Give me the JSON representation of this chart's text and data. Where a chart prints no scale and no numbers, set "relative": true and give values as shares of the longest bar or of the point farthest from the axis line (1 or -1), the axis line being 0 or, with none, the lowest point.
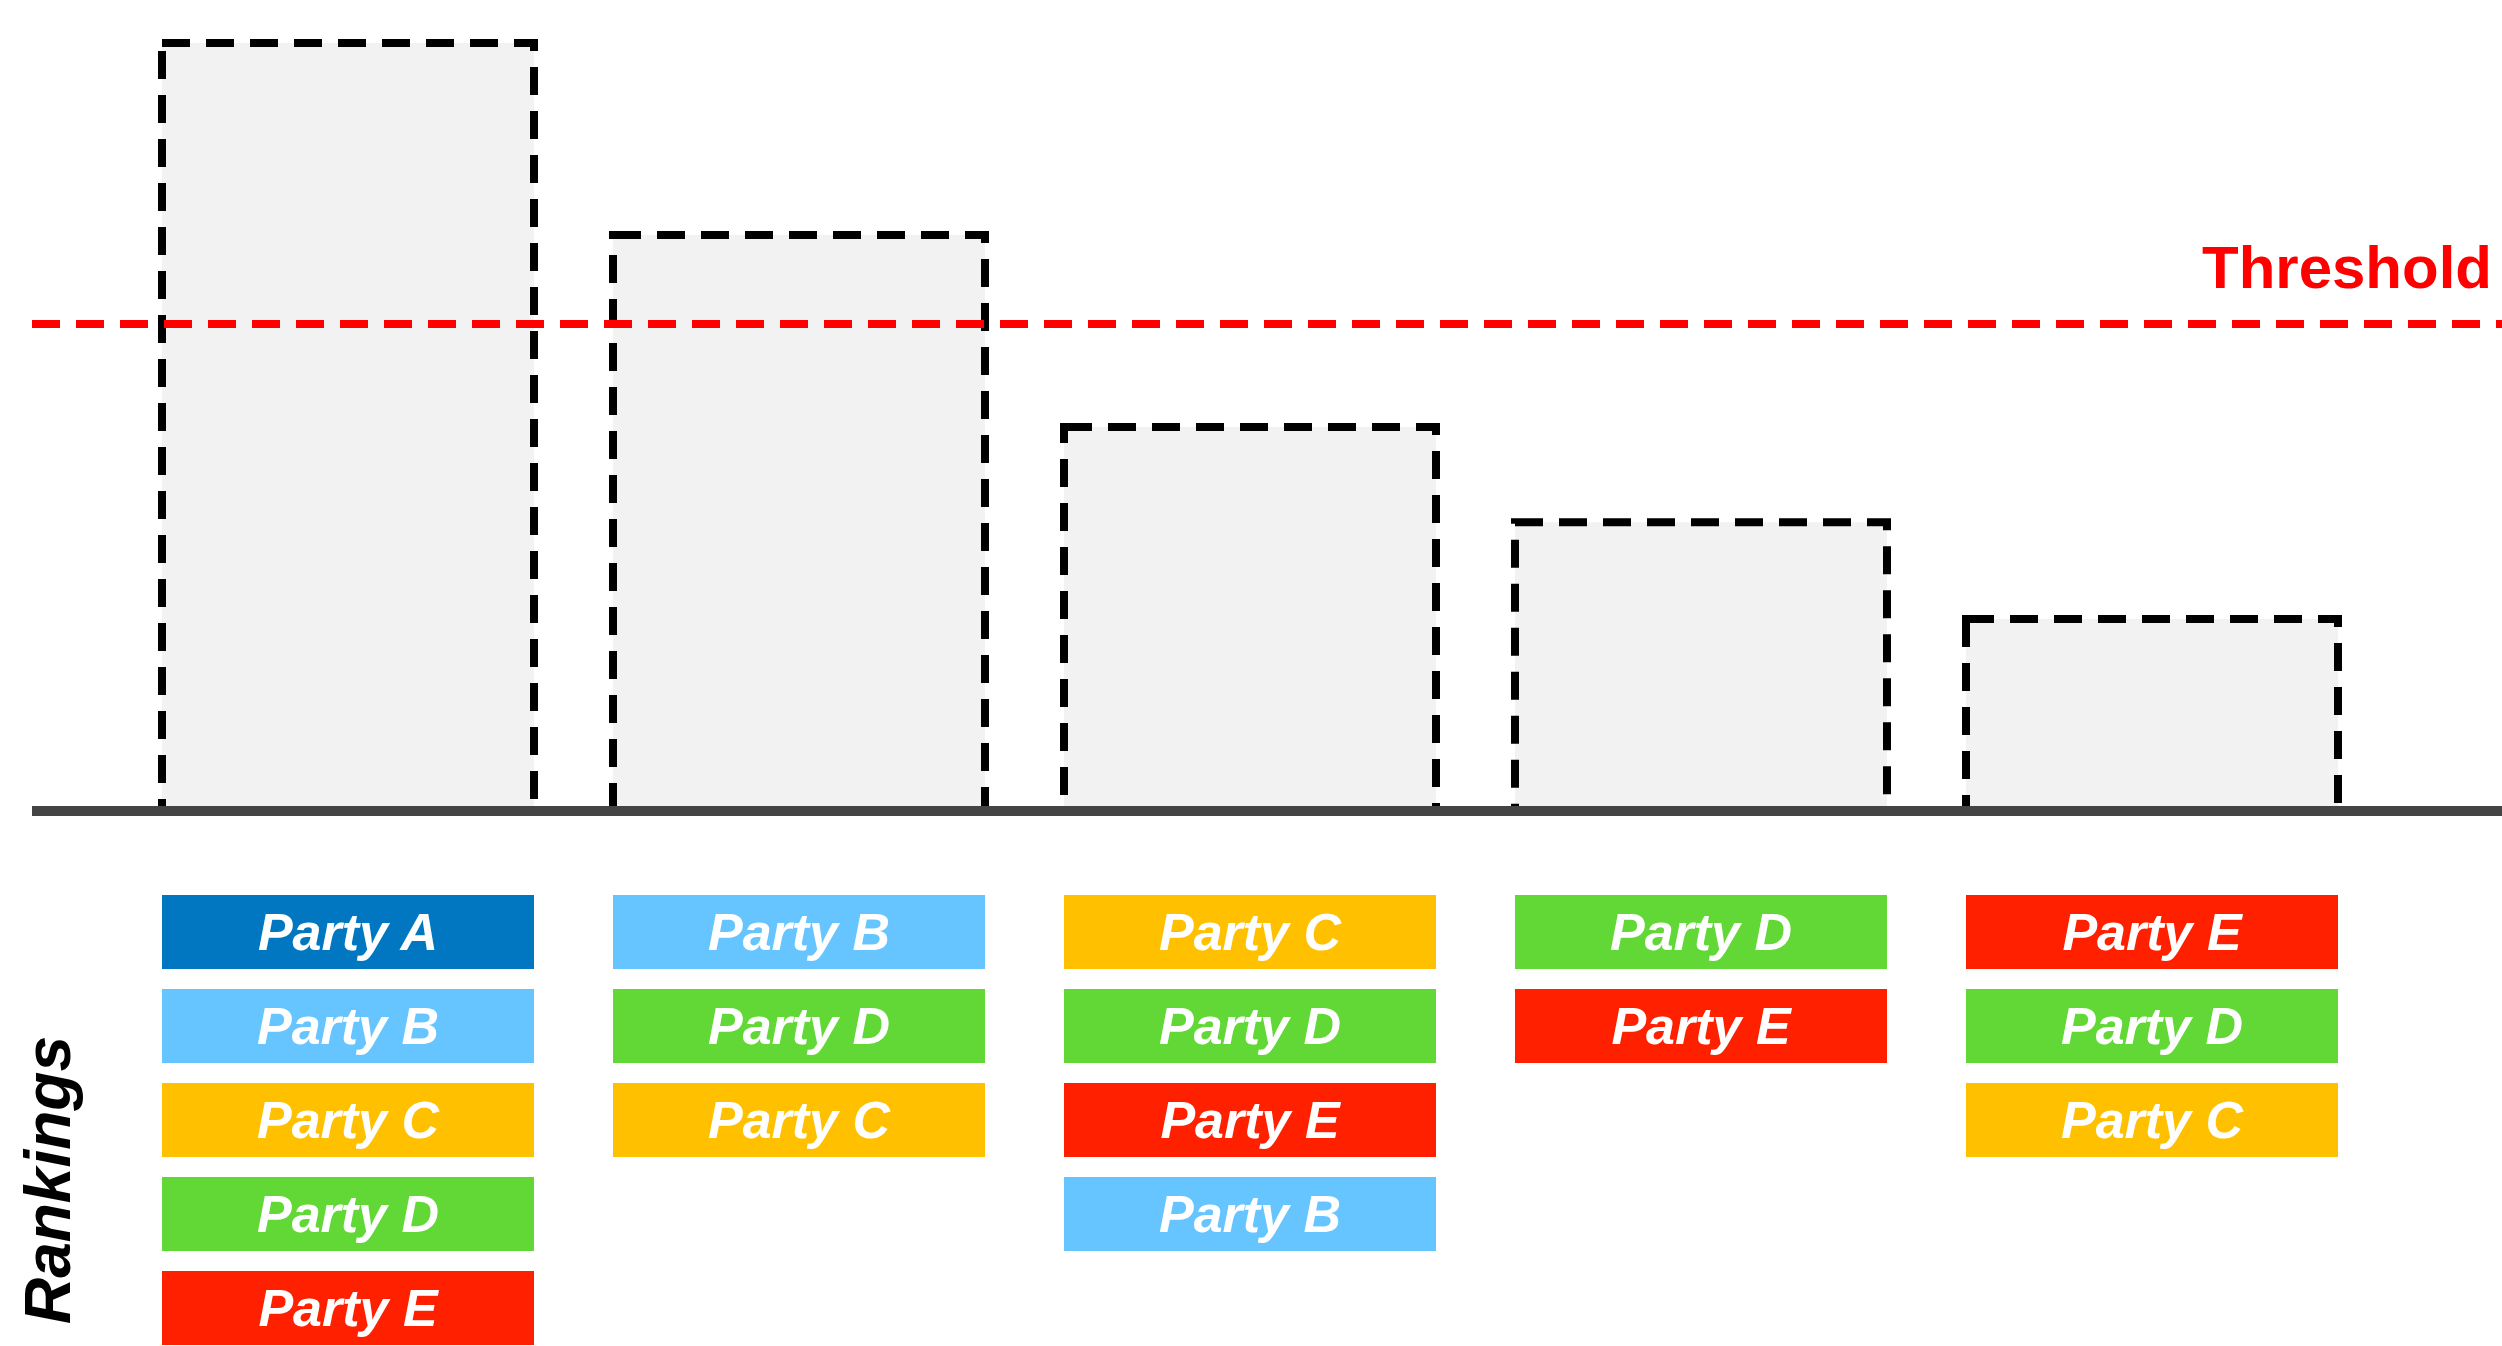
{
  "chart_data": [
    {
      "type": "bar",
      "relative": true,
      "categories": [
        null,
        null,
        null,
        null,
        null
      ],
      "values": [
        1,
        0.75,
        0.5,
        0.376,
        0.25
      ],
      "color": "#f2f2f2",
      "line_style": "dashed",
      "ref_lines": [
        {
          "axis": "y",
          "value": 0.634,
          "label": "Threshold",
          "color": "#ff0000",
          "line_style": "dashed"
        }
      ]
    },
    {
      "type": "other",
      "ylabel": "Rankings",
      "categories": [
        "Party A",
        "Party B",
        "Party C",
        "Party D",
        "Party E",
        "Party B",
        "Party D",
        "Party C",
        null,
        null,
        "Party C",
        "Party D",
        "Party E",
        "Party B",
        null,
        "Party D",
        "Party E",
        null,
        null,
        null,
        "Party E",
        "Party D",
        "Party C",
        null,
        null
      ],
      "colors": [
        "#0077c0",
        "#66c5ff",
        "#ffc000",
        "#61d836",
        "#ff2000",
        "#66c5ff",
        "#61d836",
        "#ffc000",
        null,
        null,
        "#ffc000",
        "#61d836",
        "#ff2000",
        "#66c5ff",
        null,
        "#61d836",
        "#ff2000",
        null,
        null,
        null,
        "#ff2000",
        "#61d836",
        "#ffc000",
        null,
        null
      ]
    }
  ]
}
